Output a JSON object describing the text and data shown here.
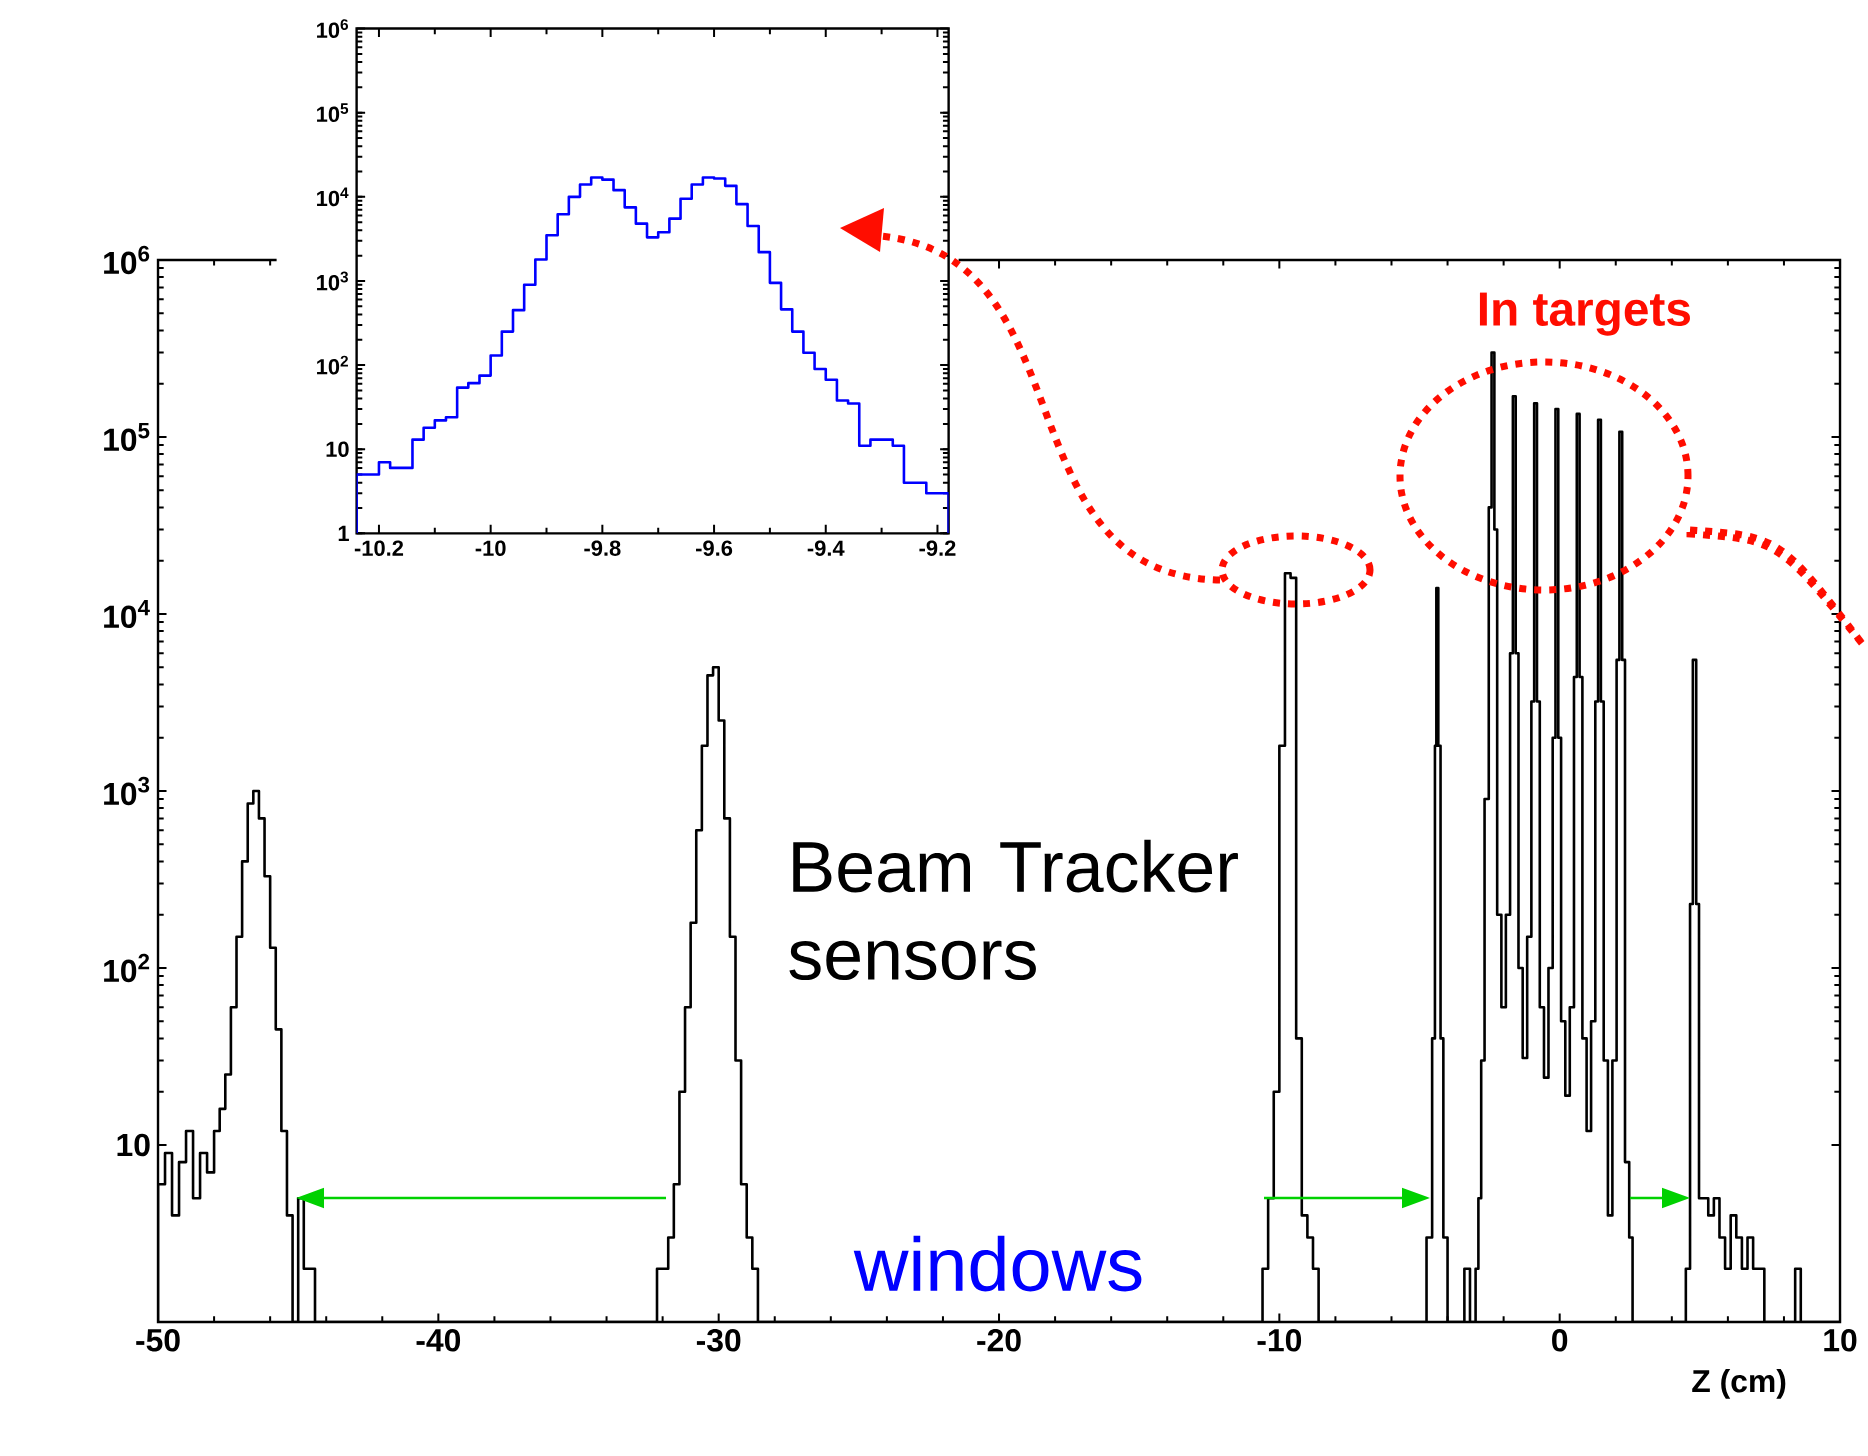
{
  "chart_data": [
    {
      "type": "histogram",
      "color": "#000000",
      "log": true,
      "xlabel": "Z (cm)",
      "xlim": [
        -50,
        10
      ],
      "ylim": [
        1,
        1000000
      ],
      "xticks": [
        -50,
        -40,
        -30,
        -20,
        -10,
        0,
        10
      ],
      "yticks": [
        10,
        {
          "value": 100,
          "label": "10$^{2}$"
        },
        {
          "value": 1000,
          "label": "10$^{3}$"
        },
        {
          "value": 10000,
          "label": "10$^{4}$"
        },
        {
          "value": 100000,
          "label": "10$^{5}$"
        },
        {
          "value": 1000000,
          "label": "10$^{6}$"
        }
      ],
      "bins": [
        -50,
        -49.75,
        -49.5,
        -49.25,
        -49,
        -48.75,
        -48.5,
        -48.25,
        -48,
        -47.8,
        -47.6,
        -47.4,
        -47.2,
        -47,
        -46.8,
        -46.6,
        -46.4,
        -46.2,
        -46,
        -45.8,
        -45.6,
        -45.4,
        -45.2,
        -45,
        -44.8,
        -44.6,
        -44.4,
        -32.2,
        -32,
        -31.8,
        -31.6,
        -31.4,
        -31.2,
        -31,
        -30.8,
        -30.6,
        -30.4,
        -30.2,
        -30,
        -29.8,
        -29.6,
        -29.4,
        -29.2,
        -29,
        -28.8,
        -28.6,
        -10.6,
        -10.4,
        -10.2,
        -10,
        -9.8,
        -9.6,
        -9.4,
        -9.2,
        -9,
        -8.8,
        -8.6,
        -4.75,
        -4.55,
        -4.45,
        -4.4,
        -4.33,
        -4.25,
        -4.15,
        -4,
        -3.4,
        -3.2,
        -3,
        -2.9,
        -2.8,
        -2.68,
        -2.53,
        -2.43,
        -2.33,
        -2.23,
        -2.08,
        -1.92,
        -1.77,
        -1.67,
        -1.57,
        -1.47,
        -1.32,
        -1.16,
        -1.01,
        -0.91,
        -0.81,
        -0.71,
        -0.56,
        -0.4,
        -0.25,
        -0.15,
        -0.05,
        0.05,
        0.2,
        0.36,
        0.51,
        0.61,
        0.71,
        0.81,
        0.96,
        1.12,
        1.27,
        1.37,
        1.47,
        1.57,
        1.72,
        1.88,
        2.03,
        2.13,
        2.23,
        2.33,
        2.48,
        2.6,
        4.5,
        4.65,
        4.75,
        4.87,
        4.97,
        5.1,
        5.3,
        5.5,
        5.7,
        5.9,
        6.1,
        6.3,
        6.5,
        6.7,
        6.9,
        7.1,
        7.3,
        8.4,
        8.6,
        10
      ],
      "values": [
        6,
        9,
        4,
        8,
        12,
        5,
        9,
        7,
        12,
        16,
        25,
        60,
        150,
        400,
        850,
        1000,
        700,
        330,
        130,
        45,
        12,
        4,
        null,
        5,
        2,
        2,
        null,
        2,
        2,
        3,
        6,
        20,
        60,
        180,
        600,
        1800,
        4500,
        5000,
        2500,
        700,
        150,
        30,
        6,
        3,
        2,
        null,
        2,
        5,
        20,
        1800,
        17000,
        16000,
        40,
        4,
        3,
        2,
        null,
        3,
        40,
        1800,
        14000,
        1800,
        40,
        3,
        null,
        2,
        null,
        2,
        5,
        30,
        900,
        40000,
        300000,
        30000,
        200,
        60,
        200,
        6000,
        170000,
        6000,
        100,
        31,
        150,
        3200,
        155000,
        3200,
        60,
        24,
        100,
        2000,
        144000,
        2000,
        50,
        19,
        60,
        4400,
        135000,
        4400,
        40,
        12,
        50,
        3200,
        125000,
        3200,
        30,
        4,
        30,
        5500,
        107000,
        5500,
        8,
        3,
        null,
        2,
        230,
        5500,
        230,
        5,
        5,
        4,
        5,
        3,
        2,
        4,
        3,
        2,
        3,
        2,
        2,
        null,
        2,
        null
      ],
      "annotations": [
        "In targets",
        "Beam Tracker sensors",
        "windows"
      ]
    },
    {
      "type": "histogram",
      "color": "#0000ff",
      "log": true,
      "xlim": [
        -10.24,
        -9.18
      ],
      "ylim": [
        1,
        1000000
      ],
      "xticks": [
        -10.2,
        -10,
        -9.8,
        -9.6,
        -9.4,
        -9.2
      ],
      "yticks": [
        1,
        10,
        {
          "value": 100,
          "label": "10$^{2}$"
        },
        {
          "value": 1000,
          "label": "10$^{3}$"
        },
        {
          "value": 10000,
          "label": "10$^{4}$"
        },
        {
          "value": 100000,
          "label": "10$^{5}$"
        },
        {
          "value": 1000000,
          "label": "10$^{6}$"
        }
      ],
      "bins": [
        -10.24,
        -10.22,
        -10.2,
        -10.18,
        -10.16,
        -10.14,
        -10.12,
        -10.1,
        -10.08,
        -10.06,
        -10.04,
        -10.02,
        -10,
        -9.98,
        -9.96,
        -9.94,
        -9.92,
        -9.9,
        -9.88,
        -9.86,
        -9.84,
        -9.82,
        -9.8,
        -9.78,
        -9.76,
        -9.74,
        -9.72,
        -9.7,
        -9.68,
        -9.66,
        -9.64,
        -9.62,
        -9.6,
        -9.58,
        -9.56,
        -9.54,
        -9.52,
        -9.5,
        -9.48,
        -9.46,
        -9.44,
        -9.42,
        -9.4,
        -9.38,
        -9.36,
        -9.34,
        -9.32,
        -9.3,
        -9.28,
        -9.26,
        -9.24,
        -9.22,
        -9.2,
        -9.18
      ],
      "values": [
        5,
        5,
        7,
        6,
        6,
        13,
        18,
        22,
        24,
        54,
        61,
        75,
        130,
        250,
        450,
        900,
        1800,
        3500,
        6200,
        10000,
        14000,
        17000,
        16000,
        12000,
        7500,
        4800,
        3300,
        3800,
        5500,
        9500,
        14000,
        17000,
        16500,
        13500,
        8200,
        4500,
        2200,
        950,
        460,
        250,
        140,
        90,
        67,
        38,
        35,
        11,
        13,
        13,
        11,
        4,
        4,
        3,
        3
      ]
    }
  ]
}
